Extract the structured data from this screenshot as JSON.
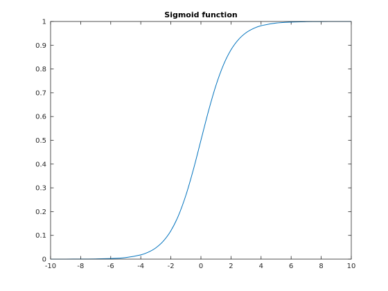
{
  "chart_data": {
    "type": "line",
    "title": "Sigmoid function",
    "xlabel": "",
    "ylabel": "",
    "xlim": [
      -10,
      10
    ],
    "ylim": [
      0,
      1
    ],
    "x_ticks": [
      -10,
      -8,
      -6,
      -4,
      -2,
      0,
      2,
      4,
      6,
      8,
      10
    ],
    "x_tick_labels": [
      "-10",
      "-8",
      "-6",
      "-4",
      "-2",
      "0",
      "2",
      "4",
      "6",
      "8",
      "10"
    ],
    "y_ticks": [
      0,
      0.1,
      0.2,
      0.3,
      0.4,
      0.5,
      0.6,
      0.7,
      0.8,
      0.9,
      1
    ],
    "y_tick_labels": [
      "0",
      "0.1",
      "0.2",
      "0.3",
      "0.4",
      "0.5",
      "0.6",
      "0.7",
      "0.8",
      "0.9",
      "1"
    ],
    "grid": false,
    "legend": "none",
    "series": [
      {
        "color": "#0072bd",
        "x": [
          -10,
          -9,
          -8,
          -7,
          -6,
          -5,
          -4,
          -3.5,
          -3,
          -2.5,
          -2,
          -1.5,
          -1,
          -0.5,
          0,
          0.5,
          1,
          1.5,
          2,
          2.5,
          3,
          3.5,
          4,
          5,
          6,
          7,
          8,
          9,
          10
        ],
        "y": [
          4.54e-05,
          0.000123,
          0.000335,
          0.000911,
          0.00247,
          0.00669,
          0.018,
          0.0293,
          0.0474,
          0.0759,
          0.1192,
          0.1824,
          0.2689,
          0.3775,
          0.5,
          0.6225,
          0.7311,
          0.8176,
          0.8808,
          0.9241,
          0.9526,
          0.9707,
          0.982,
          0.9933,
          0.9975,
          0.9991,
          0.9997,
          0.9999,
          1.0
        ]
      }
    ]
  }
}
